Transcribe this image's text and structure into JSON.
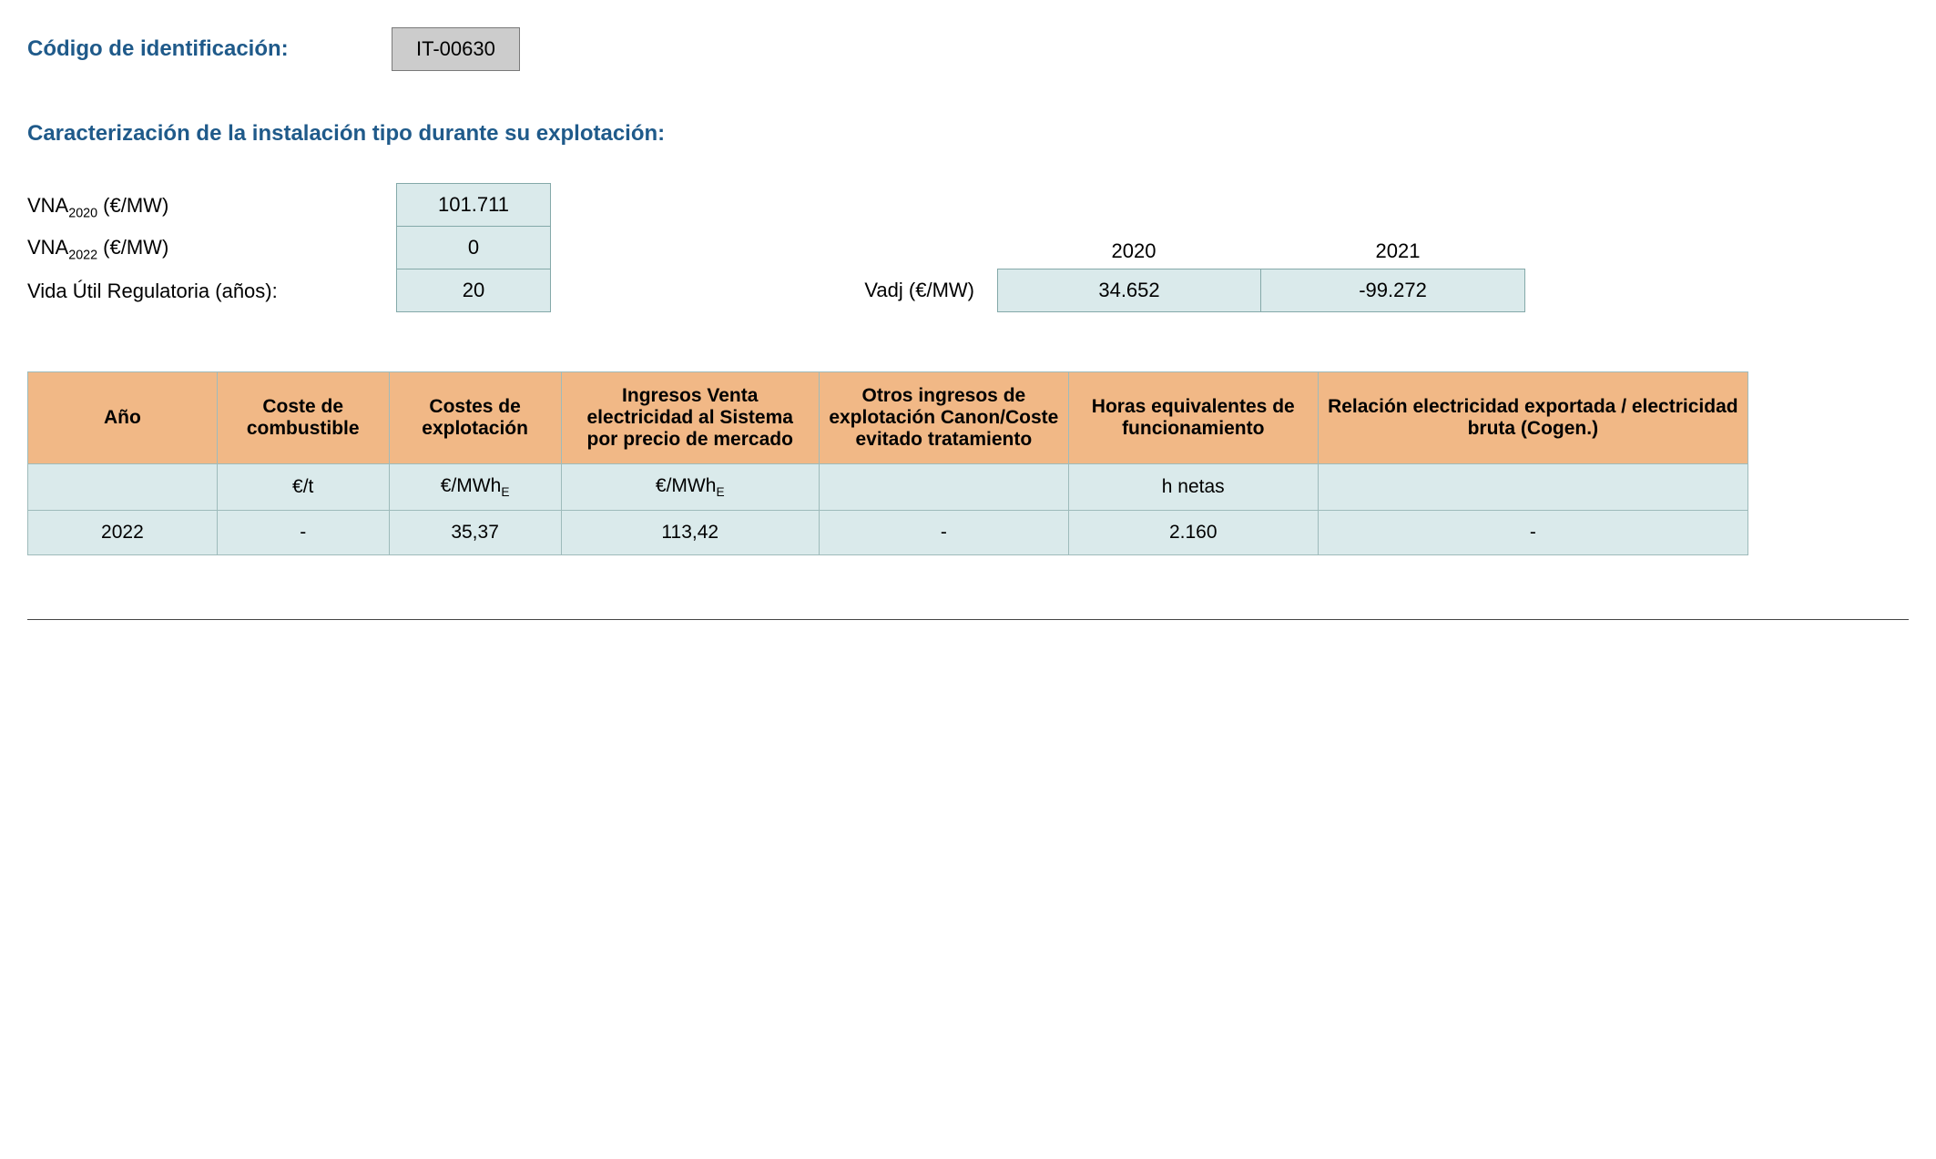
{
  "header": {
    "codigo_label": "Código de identificación:",
    "codigo_value": "IT-00630",
    "section_title": "Caracterización de la instalación tipo durante su explotación:"
  },
  "params": {
    "vna2020_label_html": "VNA<sub>2020</sub> (€/MW)",
    "vna2020_value": "101.711",
    "vna2022_label_html": "VNA<sub>2022</sub> (€/MW)",
    "vna2022_value": "0",
    "vida_label": "Vida Útil Regulatoria (años):",
    "vida_value": "20"
  },
  "vadj": {
    "label": "Vadj (€/MW)",
    "year1_label": "2020",
    "year2_label": "2021",
    "year1_value": "34.652",
    "year2_value": "-99.272"
  },
  "table": {
    "columns": [
      "Año",
      "Coste de combustible",
      "Costes de explotación",
      "Ingresos Venta electricidad al Sistema por precio de mercado",
      "Otros ingresos de explotación Canon/Coste evitado tratamiento",
      "Horas equivalentes de funcionamiento",
      "Relación electricidad exportada / electricidad bruta (Cogen.)"
    ],
    "units_row": {
      "ano": "",
      "combustible": "€/t",
      "explotacion_html": "€/MWh<sub>E</sub>",
      "ingresos_html": "€/MWh<sub>E</sub>",
      "otros": "",
      "horas": "h netas",
      "relacion": ""
    },
    "data_row": {
      "ano": "2022",
      "combustible": "-",
      "explotacion": "35,37",
      "ingresos": "113,42",
      "otros": "-",
      "horas": "2.160",
      "relacion": "-"
    }
  },
  "colors": {
    "heading": "#1f5a8a",
    "header_bg": "#f1b886",
    "cell_bg": "#daeaeb",
    "border": "#9ebbbb",
    "codigo_bg": "#cccccc"
  }
}
